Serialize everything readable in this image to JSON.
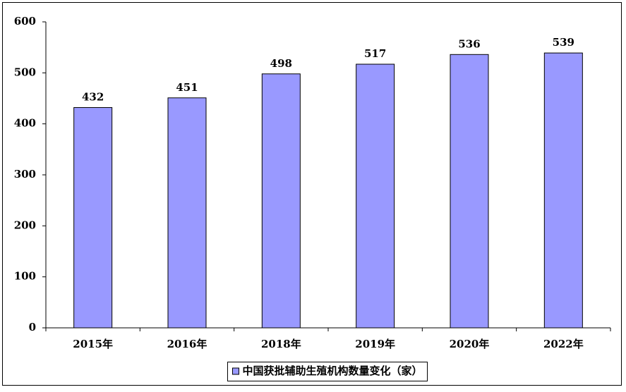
{
  "chart_data": {
    "type": "bar",
    "categories": [
      "2015年",
      "2016年",
      "2018年",
      "2019年",
      "2020年",
      "2022年"
    ],
    "series": [
      {
        "name": "中国获批辅助生殖机构数量变化（家）",
        "color": "#9999ff",
        "values": [
          432,
          451,
          498,
          517,
          536,
          539
        ]
      }
    ],
    "ylim": [
      0,
      600
    ],
    "yticks": [
      0,
      100,
      200,
      300,
      400,
      500,
      600
    ],
    "grid": false,
    "legend": "bottom"
  }
}
